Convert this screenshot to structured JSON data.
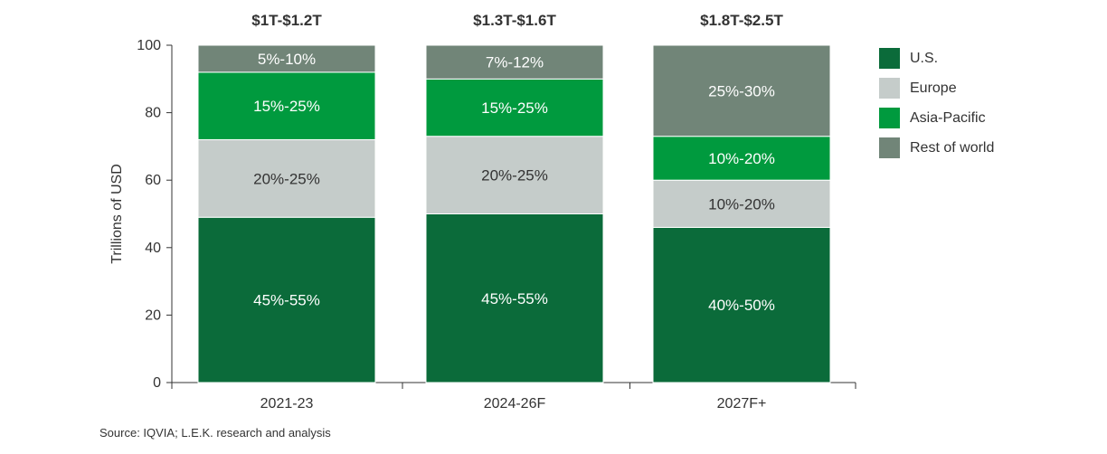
{
  "chart_data": {
    "type": "bar",
    "stacked": true,
    "ylabel": "Trillions of USD",
    "ylim": [
      0,
      100
    ],
    "yticks": [
      0,
      20,
      40,
      60,
      80,
      100
    ],
    "categories": [
      "2021-23",
      "2024-26F",
      "2027F+"
    ],
    "totals": [
      "$1T-$1.2T",
      "$1.3T-$1.6T",
      "$1.8T-$2.5T"
    ],
    "series": [
      {
        "name": "U.S.",
        "color": "#0b6b3a",
        "values": [
          49,
          50,
          46
        ],
        "labels": [
          "45%-55%",
          "45%-55%",
          "40%-50%"
        ]
      },
      {
        "name": "Europe",
        "color": "#c5ccca",
        "values": [
          23,
          23,
          14
        ],
        "labels": [
          "20%-25%",
          "20%-25%",
          "10%-20%"
        ]
      },
      {
        "name": "Asia-Pacific",
        "color": "#009a3e",
        "values": [
          20,
          17,
          13
        ],
        "labels": [
          "15%-25%",
          "15%-25%",
          "10%-20%"
        ]
      },
      {
        "name": "Rest of world",
        "color": "#718578",
        "values": [
          8,
          10,
          27
        ],
        "labels": [
          "5%-10%",
          "7%-12%",
          "25%-30%"
        ]
      }
    ],
    "legend_position": "right",
    "grid": false
  },
  "source_note": "Source: IQVIA; L.E.K. research and analysis"
}
